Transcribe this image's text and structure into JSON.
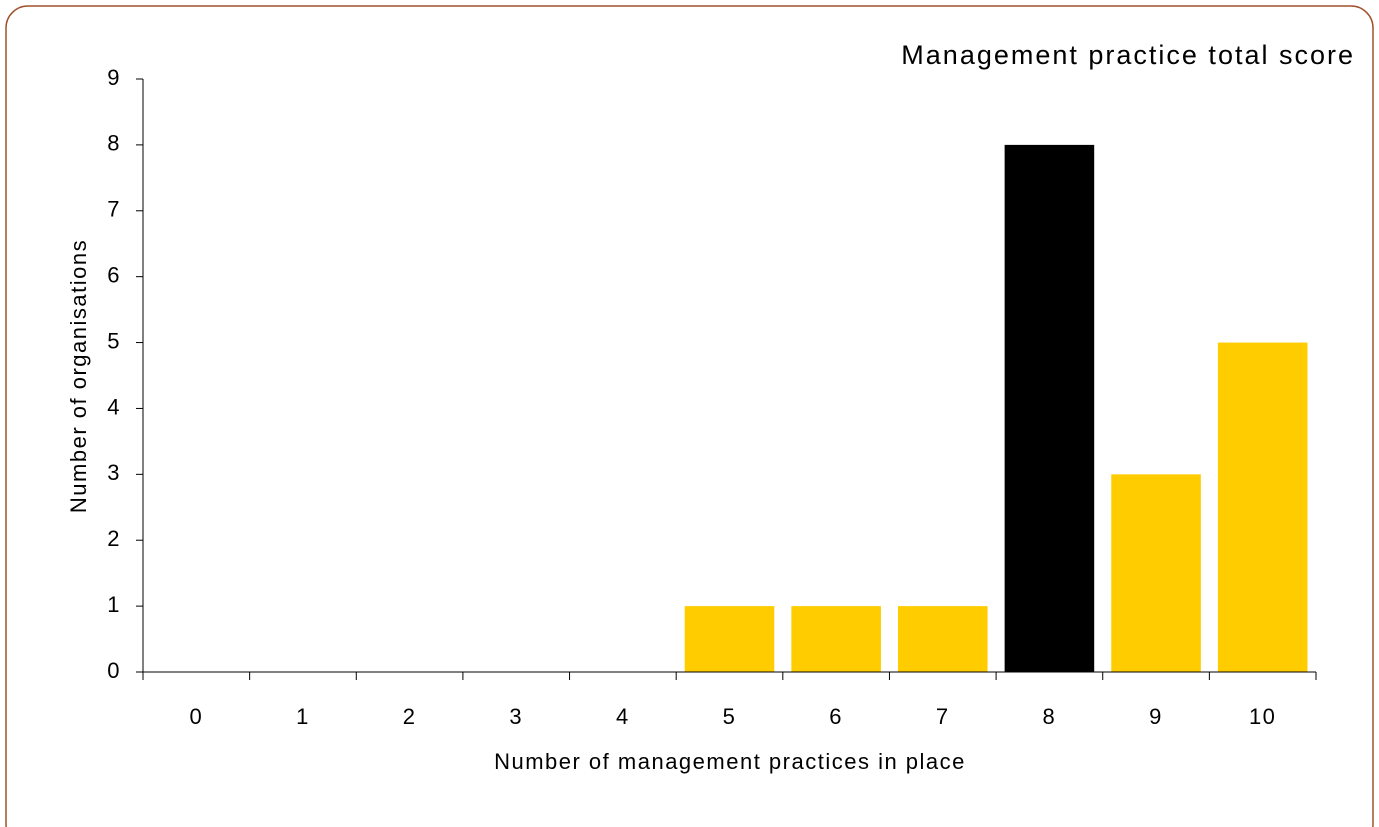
{
  "chart_data": {
    "type": "bar",
    "title": "Management practice total score",
    "x_label": "Number of management practices in place",
    "y_label": "Number of organisations",
    "categories": [
      "0",
      "1",
      "2",
      "3",
      "4",
      "5",
      "6",
      "7",
      "8",
      "9",
      "10"
    ],
    "values": [
      0,
      0,
      0,
      0,
      0,
      1,
      1,
      1,
      8,
      3,
      5
    ],
    "colors": [
      "#ffcc00",
      "#ffcc00",
      "#ffcc00",
      "#ffcc00",
      "#ffcc00",
      "#ffcc00",
      "#ffcc00",
      "#ffcc00",
      "#000000",
      "#ffcc00",
      "#ffcc00"
    ],
    "ylim": [
      0,
      9
    ],
    "yticks": [
      0,
      1,
      2,
      3,
      4,
      5,
      6,
      7,
      8,
      9
    ],
    "grid": false
  }
}
